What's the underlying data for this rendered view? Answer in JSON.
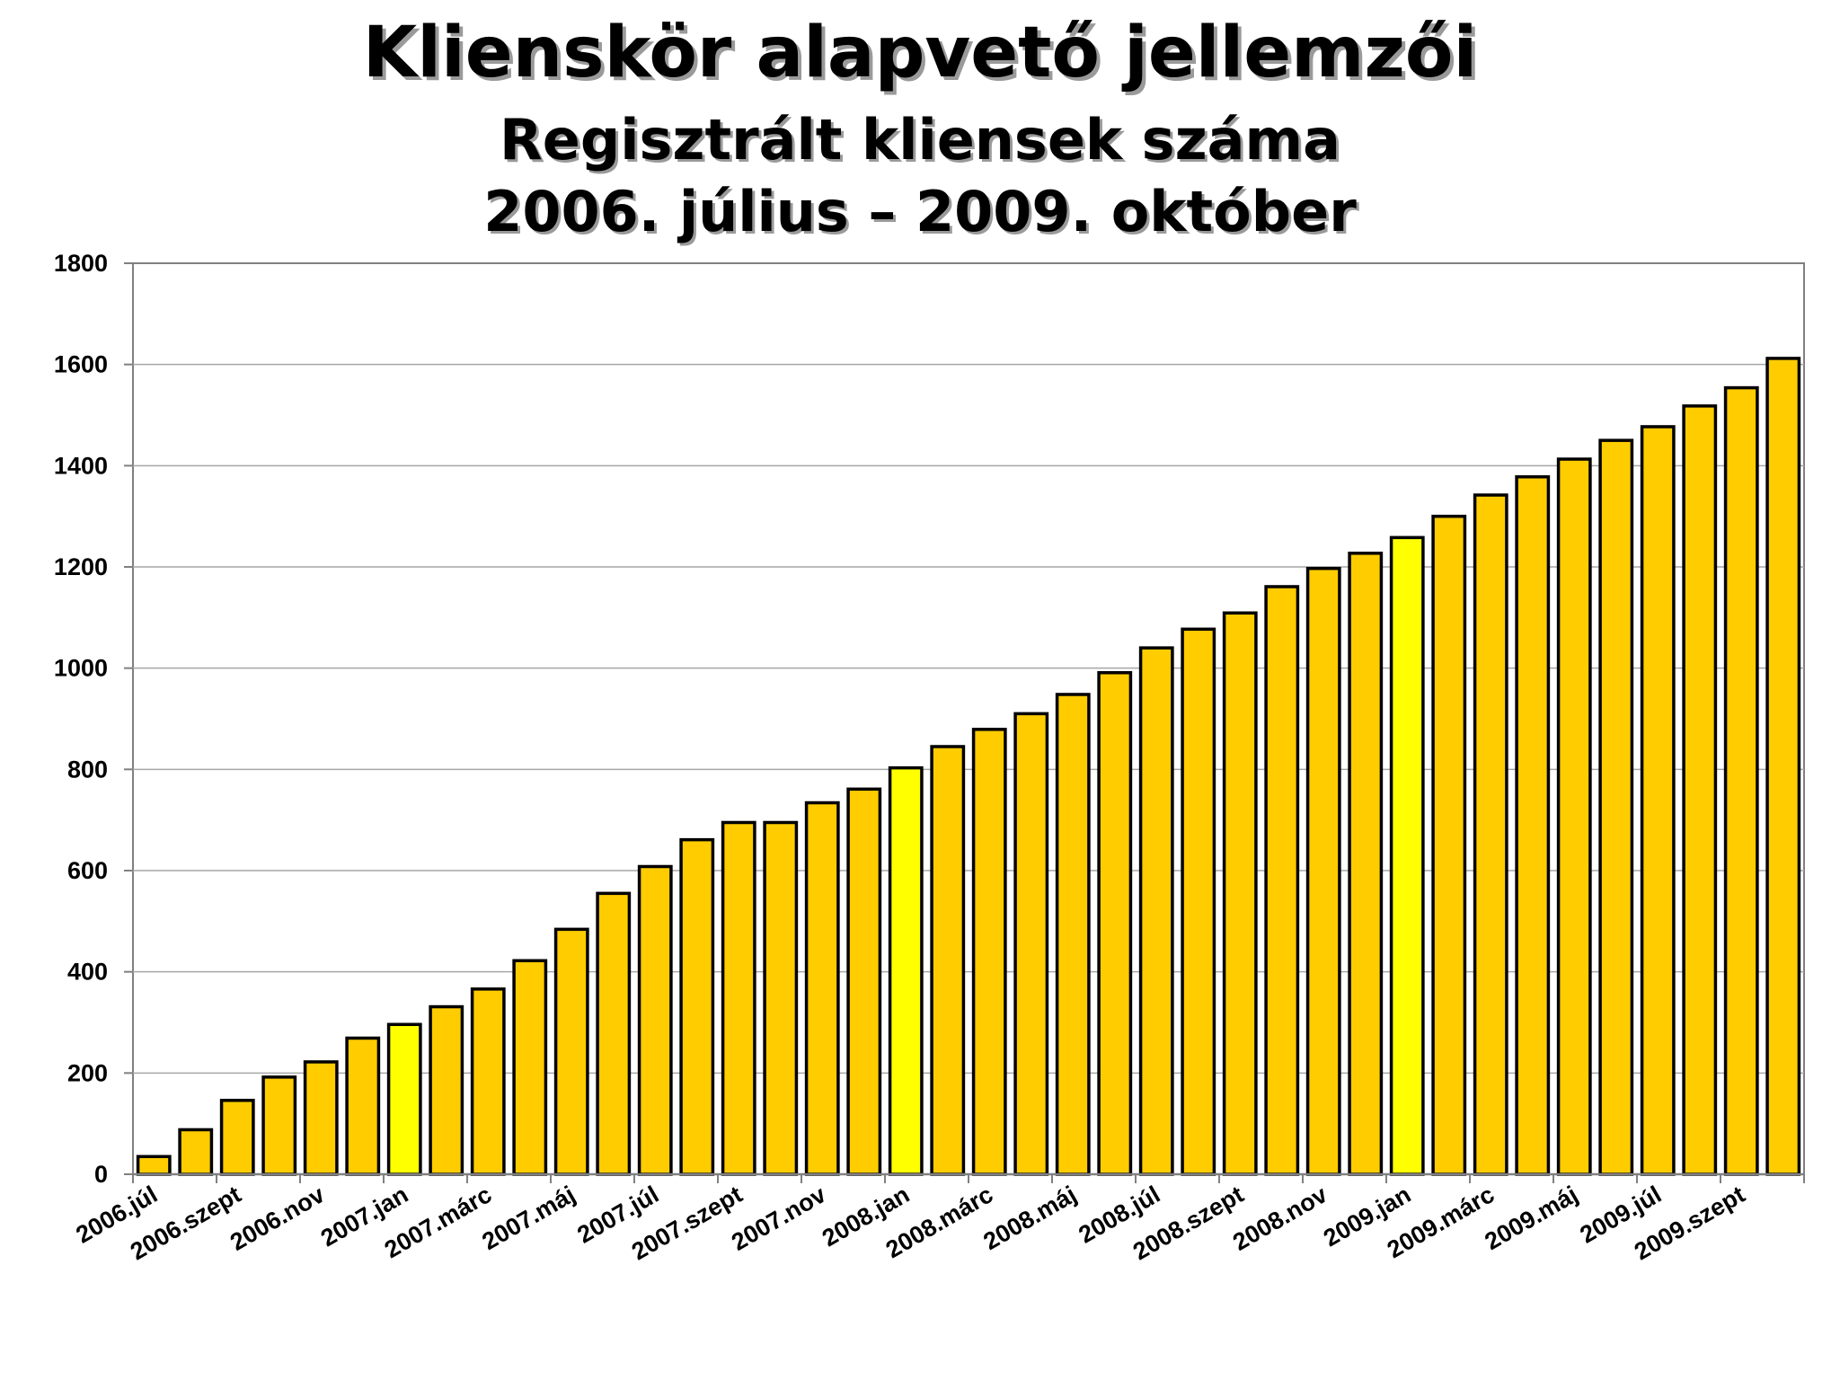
{
  "chart_data": {
    "type": "bar",
    "title": "Klienskör alapvető jellemzői",
    "subtitle_lines": [
      "Regisztrált kliensek száma",
      "2006. július – 2009. október"
    ],
    "xlabel": "",
    "ylabel": "",
    "ylim": [
      0,
      1800
    ],
    "yticks": [
      0,
      200,
      400,
      600,
      800,
      1000,
      1200,
      1400,
      1600,
      1800
    ],
    "grid": true,
    "legend": "none",
    "x_tick_labels": [
      "2006.júl",
      "2006.szept",
      "2006.nov",
      "2007.jan",
      "2007.márc",
      "2007.máj",
      "2007.júl",
      "2007.szept",
      "2007.nov",
      "2008.jan",
      "2008.márc",
      "2008.máj",
      "2008.júl",
      "2008.szept",
      "2008.nov",
      "2009.jan",
      "2009.márc",
      "2009.máj",
      "2009.júl",
      "2009.szept"
    ],
    "values": [
      35,
      88,
      146,
      192,
      222,
      269,
      296,
      331,
      366,
      422,
      484,
      555,
      608,
      661,
      695,
      695,
      734,
      761,
      803,
      845,
      879,
      910,
      948,
      991,
      1040,
      1077,
      1109,
      1161,
      1197,
      1227,
      1258,
      1300,
      1342,
      1378,
      1413,
      1450,
      1477,
      1518,
      1554,
      1612
    ],
    "highlighted_indices": [
      6,
      18,
      30
    ],
    "colors": {
      "bar": "#FFCC00",
      "bar_highlight": "#FFFF00",
      "bar_outline": "#000000",
      "grid": "#A6A6A6",
      "axis": "#808080"
    }
  }
}
